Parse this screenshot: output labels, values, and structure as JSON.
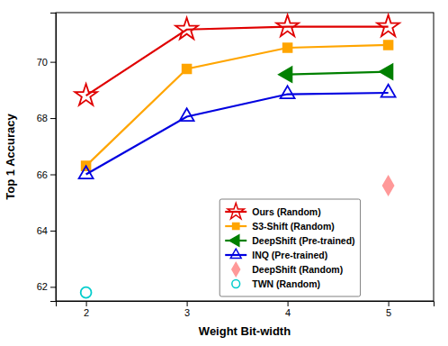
{
  "chart_data": {
    "type": "line",
    "xlabel": "Weight Bit-width",
    "ylabel": "Top 1 Accuracy",
    "series": [
      {
        "name": "Ours (Random)",
        "color": "#e00000",
        "marker": "star-open",
        "line_style": "solid",
        "x": [
          2,
          3,
          4,
          5
        ],
        "values": [
          68.8,
          71.15,
          71.25,
          71.25
        ]
      },
      {
        "name": "S3-Shift (Random)",
        "color": "#FFA500",
        "marker": "square",
        "line_style": "solid",
        "x": [
          2,
          3,
          4,
          5
        ],
        "values": [
          66.3,
          69.75,
          70.5,
          70.6
        ]
      },
      {
        "name": "DeepShift (Pre-trained)",
        "color": "#008000",
        "marker": "triangle-left",
        "line_style": "solid",
        "x": [
          4,
          5
        ],
        "values": [
          69.55,
          69.65
        ]
      },
      {
        "name": "INQ (Pre-trained)",
        "color": "#0000e0",
        "marker": "triangle-up-open",
        "line_style": "solid",
        "x": [
          2,
          3,
          4,
          5
        ],
        "values": [
          66.0,
          68.05,
          68.85,
          68.9
        ]
      },
      {
        "name": "DeepShift (Random)",
        "color": "#FF9999",
        "marker": "diamond",
        "line_style": "none",
        "x": [
          5
        ],
        "values": [
          65.6
        ]
      },
      {
        "name": "TWN (Random)",
        "color": "#00CCCC",
        "marker": "circle-open",
        "line_style": "none",
        "x": [
          2
        ],
        "values": [
          61.8
        ]
      }
    ],
    "xlim": [
      1.7,
      5.45
    ],
    "ylim": [
      61.5,
      71.75
    ],
    "xticks": [
      2,
      3,
      4,
      5
    ],
    "yticks": [
      62,
      64,
      66,
      68,
      70
    ],
    "grid": false,
    "legend": "bottom"
  }
}
